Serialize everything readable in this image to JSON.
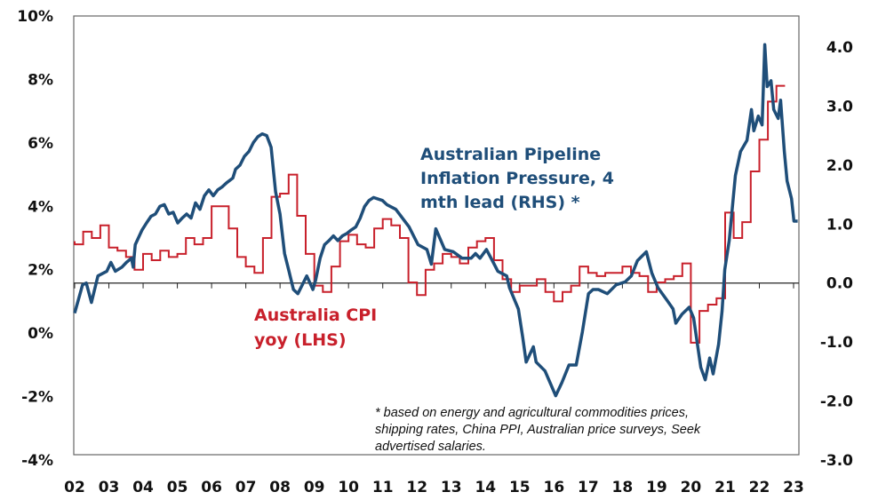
{
  "chart_data": {
    "type": "line",
    "title": "",
    "x_tick_labels": [
      "02",
      "03",
      "04",
      "05",
      "06",
      "07",
      "08",
      "09",
      "10",
      "11",
      "12",
      "13",
      "14",
      "15",
      "16",
      "17",
      "18",
      "19",
      "20",
      "21",
      "22",
      "23"
    ],
    "y_left": {
      "ylim": [
        -4,
        10
      ],
      "tick_labels": [
        "10%",
        "8%",
        "6%",
        "4%",
        "2%",
        "0%",
        "-2%",
        "-4%"
      ],
      "ticks": [
        10,
        8,
        6,
        4,
        2,
        0,
        -2,
        -4
      ]
    },
    "y_right": {
      "ylim": [
        -3.0,
        4.0
      ],
      "tick_labels": [
        "4.0",
        "3.0",
        "2.0",
        "1.0",
        "0.0",
        "-1.0",
        "-2.0",
        "-3.0"
      ],
      "ticks": [
        4,
        3,
        2,
        1,
        0,
        -1,
        -2,
        -3
      ]
    },
    "grid": false,
    "series": [
      {
        "name": "Australia CPI yoy (LHS)",
        "name_lines": [
          "Australia CPI",
          "yoy (LHS)"
        ],
        "axis": "left",
        "style": "step",
        "color": "#C8202B",
        "quarters": [
          "2002Q1",
          "2002Q2",
          "2002Q3",
          "2002Q4",
          "2003Q1",
          "2003Q2",
          "2003Q3",
          "2003Q4",
          "2004Q1",
          "2004Q2",
          "2004Q3",
          "2004Q4",
          "2005Q1",
          "2005Q2",
          "2005Q3",
          "2005Q4",
          "2006Q1",
          "2006Q2",
          "2006Q3",
          "2006Q4",
          "2007Q1",
          "2007Q2",
          "2007Q3",
          "2007Q4",
          "2008Q1",
          "2008Q2",
          "2008Q3",
          "2008Q4",
          "2009Q1",
          "2009Q2",
          "2009Q3",
          "2009Q4",
          "2010Q1",
          "2010Q2",
          "2010Q3",
          "2010Q4",
          "2011Q1",
          "2011Q2",
          "2011Q3",
          "2011Q4",
          "2012Q1",
          "2012Q2",
          "2012Q3",
          "2012Q4",
          "2013Q1",
          "2013Q2",
          "2013Q3",
          "2013Q4",
          "2014Q1",
          "2014Q2",
          "2014Q3",
          "2014Q4",
          "2015Q1",
          "2015Q2",
          "2015Q3",
          "2015Q4",
          "2016Q1",
          "2016Q2",
          "2016Q3",
          "2016Q4",
          "2017Q1",
          "2017Q2",
          "2017Q3",
          "2017Q4",
          "2018Q1",
          "2018Q2",
          "2018Q3",
          "2018Q4",
          "2019Q1",
          "2019Q2",
          "2019Q3",
          "2019Q4",
          "2020Q1",
          "2020Q2",
          "2020Q3",
          "2020Q4",
          "2021Q1",
          "2021Q2",
          "2021Q3",
          "2021Q4",
          "2022Q1",
          "2022Q2",
          "2022Q3",
          "2022Q4"
        ],
        "values": [
          2.9,
          2.8,
          3.2,
          3.0,
          3.4,
          2.7,
          2.6,
          2.4,
          2.0,
          2.5,
          2.3,
          2.6,
          2.4,
          2.5,
          3.0,
          2.8,
          3.0,
          4.0,
          4.0,
          3.3,
          2.4,
          2.1,
          1.9,
          3.0,
          4.3,
          4.4,
          5.0,
          3.7,
          2.5,
          1.5,
          1.3,
          2.1,
          2.9,
          3.1,
          2.8,
          2.7,
          3.3,
          3.6,
          3.4,
          3.0,
          1.6,
          1.2,
          2.0,
          2.2,
          2.5,
          2.4,
          2.2,
          2.7,
          2.9,
          3.0,
          2.3,
          1.7,
          1.3,
          1.5,
          1.5,
          1.7,
          1.3,
          1.0,
          1.3,
          1.5,
          2.1,
          1.9,
          1.8,
          1.9,
          1.9,
          2.1,
          1.9,
          1.8,
          1.3,
          1.6,
          1.7,
          1.8,
          2.2,
          -0.3,
          0.7,
          0.9,
          1.1,
          3.8,
          3.0,
          3.5,
          5.1,
          6.1,
          7.3,
          7.8
        ]
      },
      {
        "name": "Australian Pipeline Inflation Pressure, 4 mth lead (RHS) *",
        "name_lines": [
          "Australian Pipeline",
          "Inflation Pressure, 4",
          "mth lead (RHS) *"
        ],
        "axis": "right",
        "style": "line",
        "color": "#1F4E79",
        "x": [
          2002.0,
          2002.23,
          2002.34,
          2002.49,
          2002.68,
          2002.94,
          2003.06,
          2003.19,
          2003.38,
          2003.51,
          2003.66,
          2003.71,
          2003.77,
          2003.97,
          2004.1,
          2004.23,
          2004.36,
          2004.49,
          2004.62,
          2004.75,
          2004.88,
          2005.01,
          2005.14,
          2005.27,
          2005.4,
          2005.53,
          2005.66,
          2005.79,
          2005.92,
          2006.05,
          2006.18,
          2006.31,
          2006.44,
          2006.62,
          2006.7,
          2006.83,
          2006.96,
          2007.09,
          2007.22,
          2007.35,
          2007.48,
          2007.61,
          2007.74,
          2007.87,
          2008.0,
          2008.13,
          2008.26,
          2008.39,
          2008.52,
          2008.65,
          2008.78,
          2008.96,
          2009.04,
          2009.17,
          2009.3,
          2009.43,
          2009.56,
          2009.69,
          2009.82,
          2009.95,
          2010.08,
          2010.21,
          2010.34,
          2010.47,
          2010.6,
          2010.73,
          2010.99,
          2011.12,
          2011.38,
          2011.77,
          2012.03,
          2012.29,
          2012.42,
          2012.55,
          2012.81,
          2013.06,
          2013.32,
          2013.58,
          2013.71,
          2013.84,
          2014.03,
          2014.23,
          2014.36,
          2014.62,
          2014.7,
          2014.96,
          2015.09,
          2015.19,
          2015.4,
          2015.48,
          2015.74,
          2016.05,
          2016.23,
          2016.44,
          2016.65,
          2016.83,
          2017.01,
          2017.14,
          2017.3,
          2017.56,
          2017.82,
          2018.08,
          2018.26,
          2018.44,
          2018.7,
          2018.86,
          2019.04,
          2019.3,
          2019.48,
          2019.56,
          2019.74,
          2019.95,
          2020.08,
          2020.29,
          2020.42,
          2020.55,
          2020.65,
          2020.81,
          2020.91,
          2020.99,
          2021.12,
          2021.3,
          2021.45,
          2021.64,
          2021.77,
          2021.84,
          2021.97,
          2022.08,
          2022.16,
          2022.23,
          2022.34,
          2022.42,
          2022.55,
          2022.62,
          2022.73,
          2022.81,
          2022.94,
          2023.01,
          2023.12
        ],
        "values": [
          -0.51,
          -0.03,
          0.0,
          -0.33,
          0.12,
          0.2,
          0.35,
          0.2,
          0.27,
          0.35,
          0.42,
          0.27,
          0.65,
          0.9,
          1.02,
          1.13,
          1.17,
          1.3,
          1.33,
          1.17,
          1.2,
          1.02,
          1.1,
          1.17,
          1.1,
          1.36,
          1.25,
          1.48,
          1.58,
          1.48,
          1.58,
          1.63,
          1.7,
          1.78,
          1.93,
          2.0,
          2.15,
          2.23,
          2.38,
          2.48,
          2.53,
          2.5,
          2.3,
          1.55,
          1.17,
          0.5,
          0.2,
          -0.11,
          -0.18,
          -0.03,
          0.12,
          -0.11,
          0.05,
          0.42,
          0.65,
          0.72,
          0.8,
          0.72,
          0.8,
          0.84,
          0.9,
          0.95,
          1.1,
          1.3,
          1.4,
          1.45,
          1.4,
          1.33,
          1.25,
          0.95,
          0.65,
          0.57,
          0.32,
          0.92,
          0.57,
          0.53,
          0.42,
          0.42,
          0.5,
          0.42,
          0.57,
          0.35,
          0.2,
          0.12,
          -0.08,
          -0.44,
          -0.93,
          -1.34,
          -1.08,
          -1.34,
          -1.49,
          -1.91,
          -1.69,
          -1.39,
          -1.39,
          -0.83,
          -0.18,
          -0.11,
          -0.11,
          -0.18,
          -0.03,
          0.02,
          0.12,
          0.38,
          0.53,
          0.17,
          -0.08,
          -0.29,
          -0.44,
          -0.68,
          -0.53,
          -0.41,
          -0.59,
          -1.43,
          -1.64,
          -1.27,
          -1.54,
          -1.04,
          -0.48,
          0.23,
          0.72,
          1.82,
          2.23,
          2.42,
          2.94,
          2.58,
          2.83,
          2.68,
          4.04,
          3.33,
          3.43,
          2.94,
          2.79,
          3.1,
          2.23,
          1.73,
          1.43,
          1.05,
          1.05
        ]
      }
    ],
    "footnote_lines": [
      "* based on energy and agricultural commodities prices,",
      "shipping rates, China PPI, Australian price surveys, Seek",
      "advertised salaries."
    ]
  }
}
